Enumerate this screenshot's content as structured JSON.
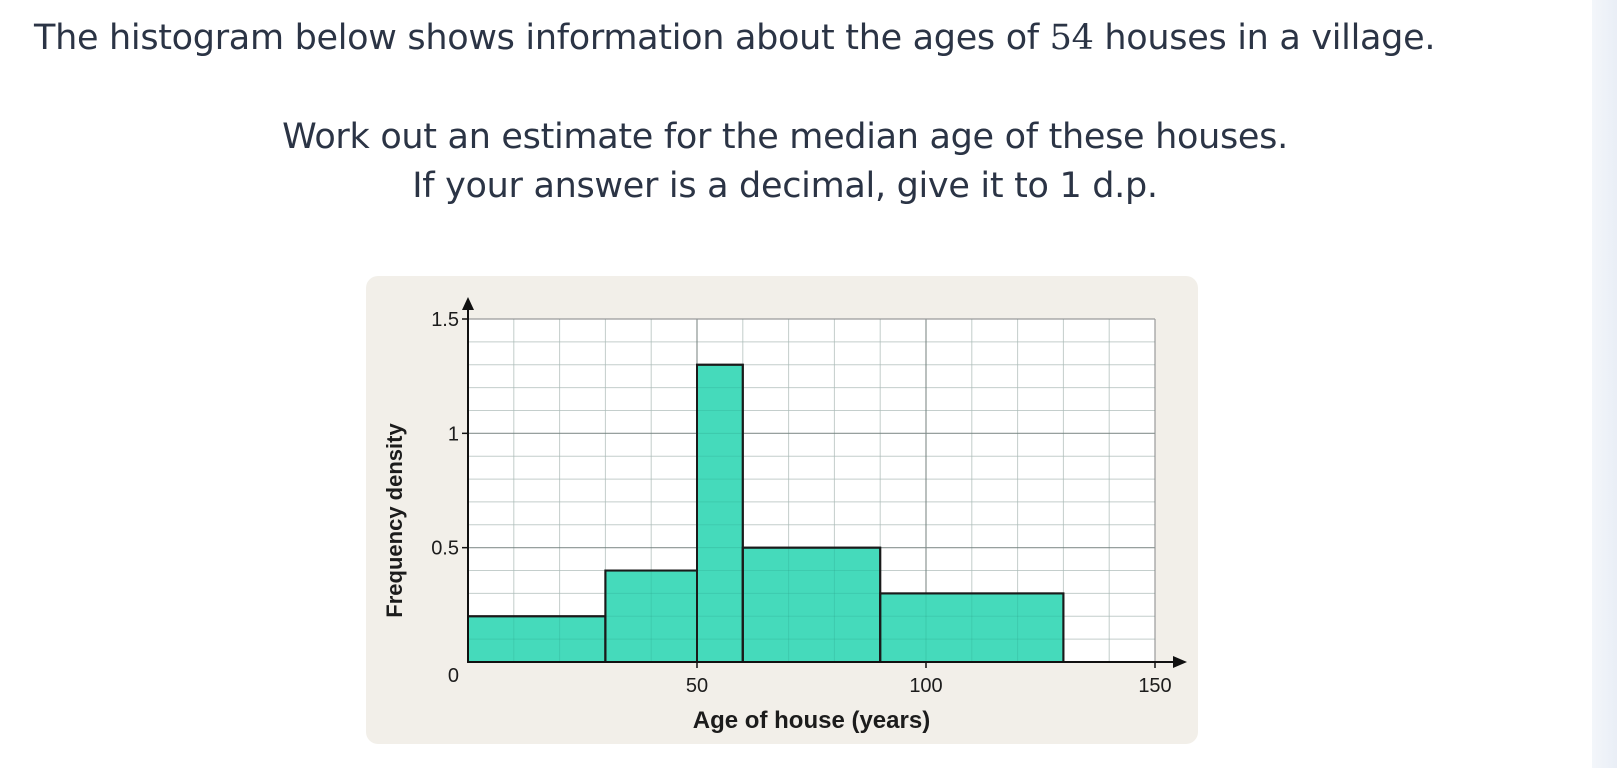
{
  "question": {
    "line1_before": "The histogram below shows information about the ages of ",
    "line1_number": "54",
    "line1_after": " houses in a village.",
    "line2": "Work out an estimate for the median age of these houses.",
    "line3": "If your answer is a decimal, give it to 1 d.p."
  },
  "colors": {
    "bar_fill": "#3dd9b8",
    "bar_stroke": "#1a1a1a",
    "card_bg": "#f2efe9",
    "text": "#2b3445"
  },
  "chart_data": {
    "type": "bar",
    "subtype": "histogram",
    "xlabel": "Age of house (years)",
    "ylabel": "Frequency density",
    "xlim": [
      0,
      150
    ],
    "ylim": [
      0,
      1.5
    ],
    "x_ticks": [
      "50",
      "100",
      "150"
    ],
    "y_ticks": [
      "0.5",
      "1",
      "1.5"
    ],
    "origin_label": "0",
    "grid": true,
    "bins": [
      {
        "from": 0,
        "to": 30,
        "density": 0.2
      },
      {
        "from": 30,
        "to": 50,
        "density": 0.4
      },
      {
        "from": 50,
        "to": 60,
        "density": 1.3
      },
      {
        "from": 60,
        "to": 90,
        "density": 0.5
      },
      {
        "from": 90,
        "to": 130,
        "density": 0.3
      }
    ]
  }
}
